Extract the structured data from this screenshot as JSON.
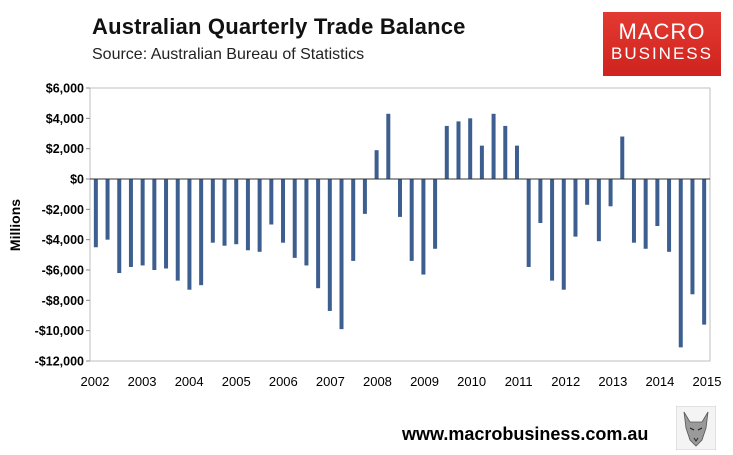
{
  "chart_data": {
    "type": "bar",
    "title": "Australian Quarterly Trade Balance",
    "subtitle": "Source: Australian Bureau of Statistics",
    "ylabel": "Millions",
    "xlabel": "",
    "ylim": [
      -12000,
      6000
    ],
    "yticks": [
      6000,
      4000,
      2000,
      0,
      -2000,
      -4000,
      -6000,
      -8000,
      -10000,
      -12000
    ],
    "ytick_labels": [
      "$6,000",
      "$4,000",
      "$2,000",
      "$0",
      "-$2,000",
      "-$4,000",
      "-$6,000",
      "-$8,000",
      "-$10,000",
      "-$12,000"
    ],
    "xtick_labels": [
      "2002",
      "2003",
      "2004",
      "2005",
      "2006",
      "2007",
      "2008",
      "2009",
      "2010",
      "2011",
      "2012",
      "2013",
      "2014",
      "2015"
    ],
    "grid": false,
    "bar_color": "#3d5f8f",
    "series": [
      {
        "name": "Trade balance",
        "values": [
          -4500,
          -4000,
          -6200,
          -5800,
          -5700,
          -6000,
          -5900,
          -6700,
          -7300,
          -7000,
          -4200,
          -4400,
          -4300,
          -4700,
          -4800,
          -3000,
          -4200,
          -5200,
          -5700,
          -7200,
          -8700,
          -9900,
          -5400,
          -2300,
          1900,
          4300,
          -2500,
          -5400,
          -6300,
          -4600,
          3500,
          3800,
          4000,
          2200,
          4300,
          3500,
          2200,
          -5800,
          -2900,
          -6700,
          -7300,
          -3800,
          -1700,
          -4100,
          -1800,
          2800,
          -4200,
          -4600,
          -3100,
          -4800,
          -11100,
          -7600,
          -9600
        ]
      }
    ]
  },
  "brand": {
    "logo_line1": "MACRO",
    "logo_line2": "BUSINESS",
    "logo_color": "#d8271f",
    "url": "www.macrobusiness.com.au"
  }
}
